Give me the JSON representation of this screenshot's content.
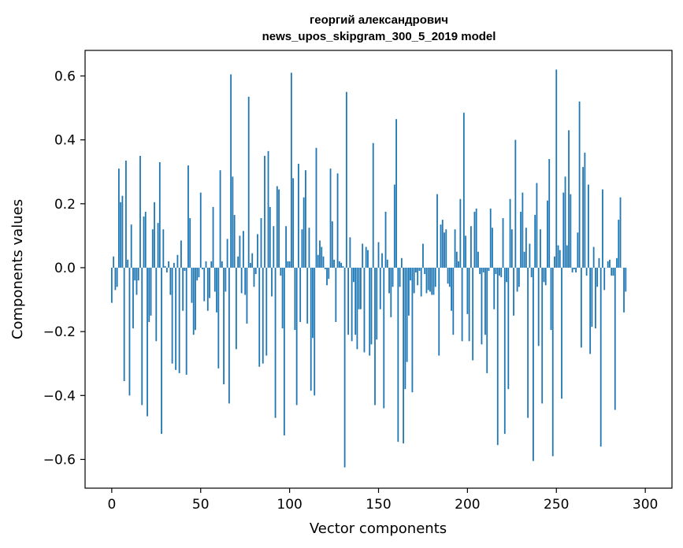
{
  "chart_data": {
    "type": "bar",
    "title": "георгий александрович",
    "subtitle": "news_upos_skipgram_300_5_2019 model",
    "xlabel": "Vector components",
    "ylabel": "Components values",
    "xlim": [
      -15,
      315
    ],
    "ylim": [
      -0.69,
      0.68
    ],
    "xticks": [
      0,
      50,
      100,
      150,
      200,
      250,
      300
    ],
    "yticks": [
      -0.6,
      -0.4,
      -0.2,
      0.0,
      0.2,
      0.4,
      0.6
    ],
    "xtick_labels": [
      "0",
      "50",
      "100",
      "150",
      "200",
      "250",
      "300"
    ],
    "ytick_labels": [
      "−0.6",
      "−0.4",
      "−0.2",
      "0.0",
      "0.2",
      "0.4",
      "0.6"
    ],
    "grid": false,
    "bar_color": "#1f77b4",
    "values": [
      -0.11,
      0.035,
      -0.07,
      -0.06,
      0.31,
      0.205,
      0.225,
      -0.355,
      0.335,
      0.025,
      -0.4,
      0.135,
      -0.19,
      -0.04,
      -0.085,
      -0.04,
      0.35,
      -0.43,
      0.16,
      0.175,
      -0.465,
      -0.17,
      -0.15,
      0.12,
      0.205,
      -0.23,
      0.14,
      0.33,
      -0.52,
      0.12,
      0.005,
      -0.015,
      0.02,
      -0.085,
      -0.3,
      0.015,
      -0.32,
      0.04,
      -0.33,
      0.085,
      -0.135,
      -0.01,
      -0.335,
      0.32,
      0.155,
      -0.11,
      -0.21,
      -0.195,
      -0.04,
      -0.03,
      0.235,
      -0.005,
      -0.105,
      0.02,
      -0.135,
      -0.095,
      0.02,
      0.19,
      -0.075,
      -0.14,
      -0.315,
      0.305,
      0.02,
      -0.365,
      -0.075,
      0.09,
      -0.425,
      0.605,
      0.285,
      0.165,
      -0.255,
      0.035,
      0.1,
      -0.08,
      0.115,
      -0.085,
      -0.175,
      0.535,
      0.015,
      0.045,
      -0.06,
      -0.02,
      0.105,
      -0.31,
      0.155,
      -0.3,
      0.35,
      -0.275,
      0.365,
      0.19,
      -0.09,
      0.13,
      -0.47,
      0.255,
      0.245,
      -0.025,
      -0.19,
      -0.525,
      0.13,
      0.02,
      0.02,
      0.61,
      0.28,
      -0.195,
      -0.43,
      0.325,
      -0.17,
      0.12,
      0.22,
      0.305,
      -0.175,
      0.125,
      -0.385,
      -0.22,
      -0.4,
      0.375,
      0.04,
      0.085,
      0.065,
      0.035,
      -0.005,
      -0.055,
      -0.035,
      0.31,
      0.145,
      0.025,
      -0.17,
      0.295,
      0.02,
      0.015,
      0.005,
      -0.625,
      0.55,
      -0.21,
      0.095,
      -0.23,
      -0.045,
      -0.21,
      -0.255,
      -0.13,
      -0.13,
      0.075,
      -0.265,
      0.065,
      0.055,
      -0.275,
      -0.24,
      0.39,
      -0.43,
      -0.225,
      0.08,
      -0.13,
      0.045,
      -0.44,
      0.175,
      0.025,
      -0.08,
      -0.155,
      -0.06,
      0.26,
      0.465,
      -0.545,
      -0.06,
      0.03,
      -0.55,
      -0.38,
      -0.295,
      -0.15,
      -0.04,
      -0.39,
      -0.08,
      -0.015,
      -0.055,
      -0.01,
      -0.09,
      0.075,
      -0.02,
      -0.08,
      -0.07,
      -0.075,
      -0.085,
      -0.085,
      -0.06,
      0.23,
      -0.275,
      0.135,
      0.15,
      0.11,
      0.12,
      -0.05,
      -0.06,
      -0.135,
      -0.21,
      0.12,
      0.05,
      0.02,
      0.215,
      -0.23,
      0.485,
      0.1,
      -0.145,
      -0.23,
      0.13,
      -0.29,
      0.175,
      0.185,
      0.05,
      -0.02,
      -0.24,
      -0.015,
      -0.21,
      -0.33,
      -0.01,
      0.185,
      0.125,
      -0.13,
      -0.02,
      -0.555,
      -0.025,
      -0.03,
      0.155,
      -0.52,
      -0.045,
      -0.38,
      0.215,
      0.12,
      -0.15,
      0.4,
      -0.075,
      -0.06,
      0.175,
      0.235,
      0.05,
      0.125,
      -0.47,
      0.075,
      -0.03,
      -0.605,
      0.165,
      0.265,
      -0.245,
      0.12,
      -0.425,
      -0.045,
      -0.055,
      0.21,
      0.34,
      -0.195,
      -0.59,
      0.035,
      0.62,
      0.07,
      0.055,
      -0.41,
      0.235,
      0.285,
      0.07,
      0.43,
      0.23,
      -0.015,
      -0.005,
      -0.015,
      0.11,
      0.52,
      -0.25,
      0.315,
      0.36,
      -0.025,
      0.26,
      -0.27,
      -0.185,
      0.065,
      -0.19,
      -0.06,
      0.03,
      -0.56,
      0.245,
      -0.07,
      0.0,
      0.02,
      0.025,
      -0.025,
      -0.025,
      -0.445,
      0.03,
      0.15,
      0.22,
      0.0,
      -0.14,
      -0.075
    ]
  }
}
